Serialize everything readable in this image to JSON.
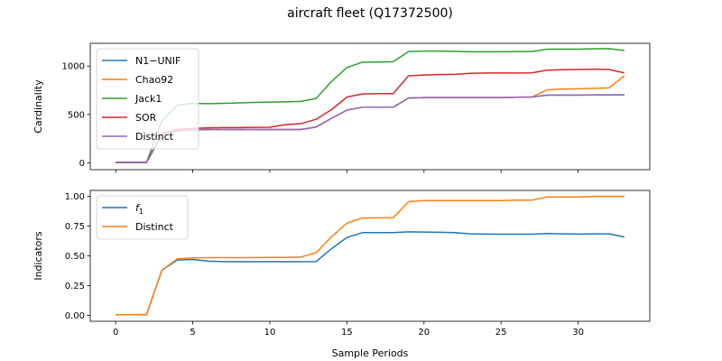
{
  "title": "aircraft fleet (Q17372500)",
  "chart_data": [
    {
      "type": "line",
      "ylabel": "Cardinality",
      "xlabel": "",
      "xlim": [
        -1.65,
        34.65
      ],
      "ylim": [
        -70,
        1235
      ],
      "xticks": [
        0,
        5,
        10,
        15,
        20,
        25,
        30
      ],
      "yticks": [
        0,
        500,
        1000
      ],
      "legend_position": "upper-left",
      "grid": false,
      "x": [
        0,
        1,
        2,
        3,
        4,
        5,
        6,
        7,
        8,
        9,
        10,
        11,
        12,
        13,
        14,
        15,
        16,
        17,
        18,
        19,
        20,
        21,
        22,
        23,
        24,
        25,
        26,
        27,
        28,
        29,
        30,
        31,
        32,
        33
      ],
      "series": [
        {
          "name": "N1−UNIF",
          "color": "#1f77b4",
          "values": [
            5,
            5,
            5,
            290,
            330,
            340,
            345,
            345,
            345,
            345,
            345,
            345,
            345,
            370,
            460,
            545,
            575,
            575,
            575,
            670,
            675,
            675,
            675,
            675,
            675,
            675,
            678,
            680,
            700,
            700,
            700,
            702,
            702,
            702
          ]
        },
        {
          "name": "Chao92",
          "color": "#ff7f0e",
          "values": [
            5,
            5,
            5,
            290,
            330,
            340,
            345,
            345,
            345,
            345,
            345,
            345,
            345,
            370,
            460,
            545,
            575,
            575,
            575,
            670,
            675,
            675,
            675,
            675,
            675,
            675,
            678,
            680,
            755,
            762,
            765,
            770,
            775,
            900
          ]
        },
        {
          "name": "Jack1",
          "color": "#2ca02c",
          "values": [
            5,
            5,
            5,
            435,
            595,
            615,
            612,
            615,
            620,
            625,
            628,
            630,
            635,
            665,
            840,
            985,
            1040,
            1042,
            1045,
            1150,
            1155,
            1155,
            1152,
            1148,
            1148,
            1148,
            1150,
            1150,
            1175,
            1175,
            1175,
            1178,
            1180,
            1160
          ]
        },
        {
          "name": "SOR",
          "color": "#d62728",
          "values": [
            5,
            5,
            5,
            305,
            345,
            355,
            362,
            365,
            365,
            367,
            368,
            395,
            405,
            450,
            550,
            680,
            712,
            715,
            715,
            900,
            908,
            912,
            915,
            925,
            928,
            928,
            928,
            930,
            958,
            962,
            965,
            968,
            965,
            930
          ]
        },
        {
          "name": "Distinct",
          "color": "#9467bd",
          "values": [
            5,
            5,
            5,
            290,
            330,
            340,
            345,
            345,
            345,
            345,
            345,
            345,
            345,
            370,
            460,
            545,
            575,
            575,
            575,
            670,
            675,
            675,
            675,
            675,
            675,
            675,
            678,
            680,
            700,
            700,
            700,
            702,
            702,
            702
          ]
        }
      ]
    },
    {
      "type": "line",
      "ylabel": "Indicators",
      "xlabel": "Sample Periods",
      "xlim": [
        -1.65,
        34.65
      ],
      "ylim": [
        -0.05,
        1.05
      ],
      "xticks": [
        0,
        5,
        10,
        15,
        20,
        25,
        30
      ],
      "yticks": [
        0.0,
        0.25,
        0.5,
        0.75,
        1.0
      ],
      "ytick_labels": [
        "0.00",
        "0.25",
        "0.50",
        "0.75",
        "1.00"
      ],
      "legend_position": "upper-left",
      "grid": false,
      "x": [
        0,
        1,
        2,
        3,
        4,
        5,
        6,
        7,
        8,
        9,
        10,
        11,
        12,
        13,
        14,
        15,
        16,
        17,
        18,
        19,
        20,
        21,
        22,
        23,
        24,
        25,
        26,
        27,
        28,
        29,
        30,
        31,
        32,
        33
      ],
      "series": [
        {
          "name": "f1",
          "label_main": "f",
          "label_sub": "1",
          "color": "#1f77b4",
          "values": [
            0.005,
            0.005,
            0.005,
            0.38,
            0.465,
            0.47,
            0.455,
            0.452,
            0.451,
            0.451,
            0.452,
            0.451,
            0.451,
            0.452,
            0.56,
            0.655,
            0.695,
            0.695,
            0.695,
            0.702,
            0.7,
            0.698,
            0.695,
            0.685,
            0.683,
            0.682,
            0.682,
            0.682,
            0.688,
            0.685,
            0.683,
            0.685,
            0.685,
            0.658
          ]
        },
        {
          "name": "Distinct",
          "color": "#ff7f0e",
          "values": [
            0.005,
            0.005,
            0.008,
            0.38,
            0.475,
            0.483,
            0.485,
            0.485,
            0.485,
            0.486,
            0.487,
            0.487,
            0.49,
            0.525,
            0.66,
            0.775,
            0.818,
            0.82,
            0.82,
            0.955,
            0.965,
            0.965,
            0.965,
            0.965,
            0.965,
            0.965,
            0.968,
            0.968,
            0.995,
            0.995,
            0.995,
            1.0,
            1.0,
            1.0
          ]
        }
      ]
    }
  ]
}
